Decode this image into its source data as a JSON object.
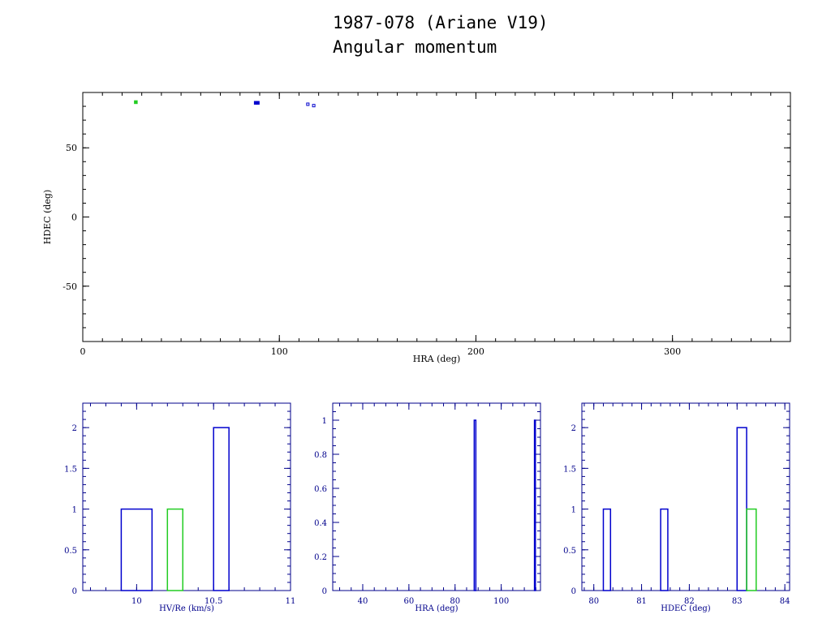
{
  "header": {
    "title": "1987-078 (Ariane V19)",
    "subtitle": "Angular momentum"
  },
  "colors": {
    "axes_main": "#000000",
    "axes_hist": "#00008b",
    "blue": "#0000cd",
    "green": "#22cc22"
  },
  "chart_data": [
    {
      "type": "scatter",
      "xlabel": "HRA (deg)",
      "ylabel": "HDEC (deg)",
      "xlim": [
        0,
        360
      ],
      "ylim": [
        -90,
        90
      ],
      "xticks": [
        0,
        100,
        200,
        300
      ],
      "yticks": [
        -50,
        0,
        50
      ],
      "series": [
        {
          "color": "green",
          "marker": "square",
          "points": [
            {
              "x": 27,
              "y": 83
            }
          ]
        },
        {
          "color": "blue",
          "marker": "filled",
          "points": [
            {
              "x": 88,
              "y": 82.5
            },
            {
              "x": 89,
              "y": 82.5
            }
          ]
        },
        {
          "color": "blue",
          "marker": "open",
          "points": [
            {
              "x": 114.5,
              "y": 81.5
            },
            {
              "x": 117.5,
              "y": 80.5
            }
          ]
        }
      ]
    },
    {
      "type": "bar",
      "xlabel": "HV/Re (km/s)",
      "ylabel": "",
      "xlim": [
        9.65,
        11.0
      ],
      "ylim": [
        0,
        2.3
      ],
      "xticks": [
        10,
        10.5,
        11
      ],
      "xticklabels": [
        "10",
        "10.5",
        "11"
      ],
      "yticks": [
        0,
        0.5,
        1,
        1.5,
        2
      ],
      "yticklabels": [
        "0",
        "0.5",
        "1",
        "1.5",
        "2"
      ],
      "bars": [
        {
          "x0": 9.9,
          "x1": 10.1,
          "value": 1,
          "color": "blue"
        },
        {
          "x0": 10.2,
          "x1": 10.3,
          "value": 1,
          "color": "green"
        },
        {
          "x0": 10.5,
          "x1": 10.6,
          "value": 2,
          "color": "blue"
        }
      ]
    },
    {
      "type": "bar",
      "xlabel": "HRA (deg)",
      "ylabel": "",
      "xlim": [
        27,
        117
      ],
      "ylim": [
        0,
        1.1
      ],
      "xticks": [
        40,
        60,
        80,
        100
      ],
      "xticklabels": [
        "40",
        "60",
        "80",
        "100"
      ],
      "yticks": [
        0,
        0.2,
        0.4,
        0.6,
        0.8,
        1
      ],
      "yticklabels": [
        "0",
        "0.2",
        "0.4",
        "0.6",
        "0.8",
        "1"
      ],
      "bars": [
        {
          "x0": 88.3,
          "x1": 89.0,
          "value": 1,
          "color": "blue"
        },
        {
          "x0": 114.4,
          "x1": 114.8,
          "value": 1,
          "color": "blue"
        }
      ]
    },
    {
      "type": "bar",
      "xlabel": "HDEC (deg)",
      "ylabel": "",
      "xlim": [
        79.75,
        84.1
      ],
      "ylim": [
        0,
        2.3
      ],
      "xticks": [
        80,
        81,
        82,
        83,
        84
      ],
      "xticklabels": [
        "80",
        "81",
        "82",
        "83",
        "84"
      ],
      "yticks": [
        0,
        0.5,
        1,
        1.5,
        2
      ],
      "yticklabels": [
        "0",
        "0.5",
        "1",
        "1.5",
        "2"
      ],
      "bars": [
        {
          "x0": 80.2,
          "x1": 80.35,
          "value": 1,
          "color": "blue"
        },
        {
          "x0": 81.4,
          "x1": 81.55,
          "value": 1,
          "color": "blue"
        },
        {
          "x0": 83.0,
          "x1": 83.2,
          "value": 2,
          "color": "blue"
        },
        {
          "x0": 83.2,
          "x1": 83.4,
          "value": 1,
          "color": "green"
        }
      ]
    }
  ]
}
